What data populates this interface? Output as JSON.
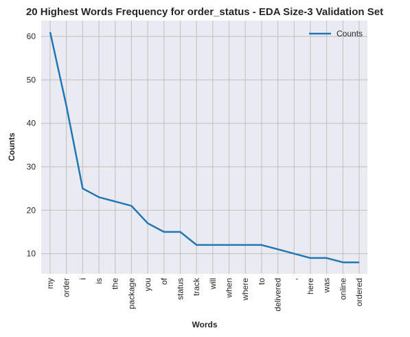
{
  "chart_data": {
    "type": "line",
    "title": "20 Highest Words Frequency for order_status - EDA Size-3 Validation Set",
    "xlabel": "Words",
    "ylabel": "Counts",
    "categories": [
      "my",
      "order",
      "i",
      "is",
      "the",
      "package",
      "you",
      "of",
      "status",
      "track",
      "will",
      "when",
      "where",
      "to",
      "delivered",
      ",",
      "here",
      "was",
      "online",
      "ordered"
    ],
    "series": [
      {
        "name": "Counts",
        "values": [
          61,
          44,
          25,
          23,
          22,
          21,
          17,
          15,
          15,
          12,
          12,
          12,
          12,
          12,
          11,
          10,
          9,
          9,
          8,
          8
        ]
      }
    ],
    "ylim": [
      5.35,
      63.65
    ],
    "yticks": [
      10,
      20,
      30,
      40,
      50,
      60
    ],
    "grid": true,
    "legend": "top-right",
    "colors": {
      "line": "#1f77b4",
      "plot_bg": "#eaeaf2",
      "grid": "#bfbfbf"
    }
  }
}
